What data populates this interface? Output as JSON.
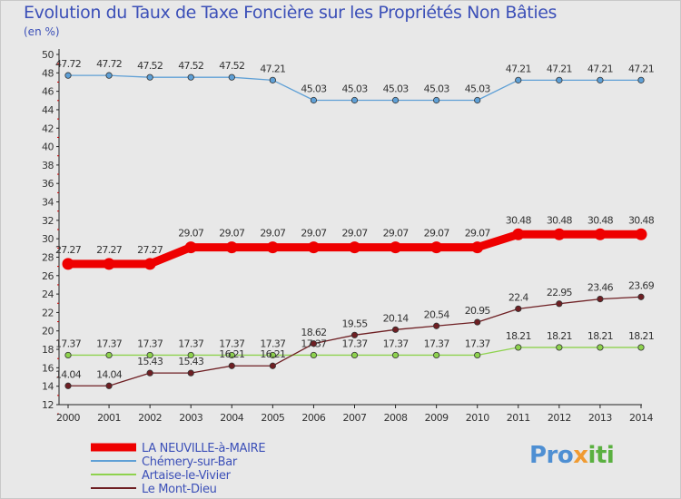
{
  "header": {
    "title": "Evolution du Taux de Taxe Foncière sur les Propriétés Non Bâties",
    "subtitle": "(en %)"
  },
  "logo": {
    "part1": "Pro",
    "part2": "x",
    "part3": "iti"
  },
  "chart_data": {
    "type": "line",
    "title": "Evolution du Taux de Taxe Foncière sur les Propriétés Non Bâties",
    "ylabel": "(en %)",
    "xlabel": "",
    "ylim": [
      12,
      50
    ],
    "ytick_step": 2,
    "x": [
      2000,
      2001,
      2002,
      2003,
      2004,
      2005,
      2006,
      2007,
      2008,
      2009,
      2010,
      2011,
      2012,
      2013,
      2014
    ],
    "grid": false,
    "legend_position": "bottom-left",
    "series": [
      {
        "name": "Chémery-sur-Bar",
        "color": "#5fa0d6",
        "values": [
          47.72,
          47.72,
          47.52,
          47.52,
          47.52,
          47.21,
          45.03,
          45.03,
          45.03,
          45.03,
          45.03,
          47.21,
          47.21,
          47.21,
          47.21
        ],
        "labels": [
          "47.72",
          "47.72",
          "47.52",
          "47.52",
          "47.52",
          "47.21",
          "45.03",
          "45.03",
          "45.03",
          "45.03",
          "45.03",
          "47.21",
          "47.21",
          "47.21",
          "47.21"
        ]
      },
      {
        "name": "LA NEUVILLE-à-MAIRE",
        "color": "#ee0000",
        "values": [
          27.27,
          27.27,
          27.27,
          29.07,
          29.07,
          29.07,
          29.07,
          29.07,
          29.07,
          29.07,
          29.07,
          30.48,
          30.48,
          30.48,
          30.48
        ],
        "labels": [
          "27.27",
          "27.27",
          "27.27",
          "29.07",
          "29.07",
          "29.07",
          "29.07",
          "29.07",
          "29.07",
          "29.07",
          "29.07",
          "30.48",
          "30.48",
          "30.48",
          "30.48"
        ]
      },
      {
        "name": "Artaise-le-Vivier",
        "color": "#8ed24e",
        "values": [
          17.37,
          17.37,
          17.37,
          17.37,
          17.37,
          17.37,
          17.37,
          17.37,
          17.37,
          17.37,
          17.37,
          18.21,
          18.21,
          18.21,
          18.21
        ],
        "labels": [
          "17.37",
          "17.37",
          "17.37",
          "17.37",
          "17.37",
          "17.37",
          "17.37",
          "17.37",
          "17.37",
          "17.37",
          "17.37",
          "18.21",
          "18.21",
          "18.21",
          "18.21"
        ]
      },
      {
        "name": "Le Mont-Dieu",
        "color": "#6e1f23",
        "values": [
          14.04,
          14.04,
          15.43,
          15.43,
          16.21,
          16.21,
          18.62,
          19.55,
          20.14,
          20.54,
          20.95,
          22.4,
          22.95,
          23.46,
          23.69
        ],
        "labels": [
          "14.04",
          "14.04",
          "15.43",
          "15.43",
          "16.21",
          "16.21",
          "18.62",
          "19.55",
          "20.14",
          "20.54",
          "20.95",
          "22.4",
          "22.95",
          "23.46",
          "23.69"
        ]
      }
    ],
    "legend_order": [
      "LA NEUVILLE-à-MAIRE",
      "Chémery-sur-Bar",
      "Artaise-le-Vivier",
      "Le Mont-Dieu"
    ]
  }
}
